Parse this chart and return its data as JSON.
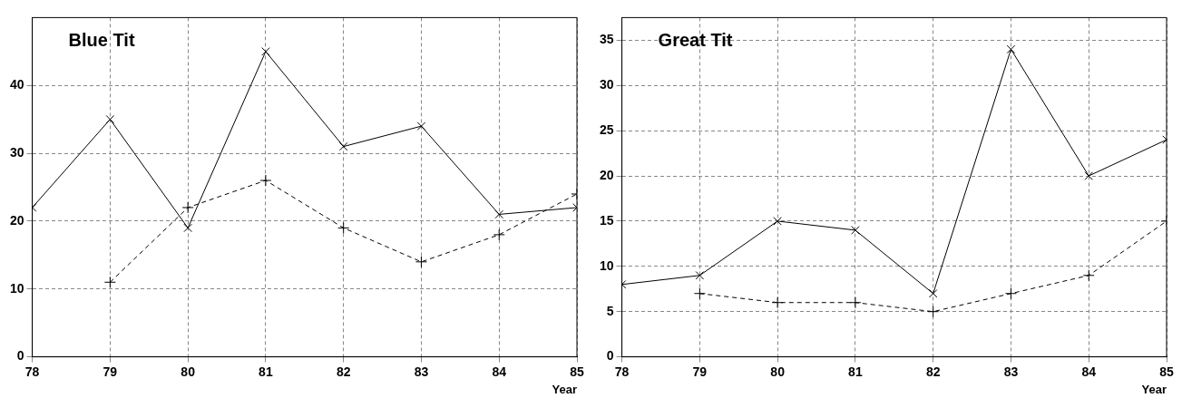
{
  "chart_data": [
    {
      "type": "line",
      "title": "Blue Tit",
      "xlabel": "Year",
      "x": [
        78,
        79,
        80,
        81,
        82,
        83,
        84,
        85
      ],
      "xlim": [
        78,
        85
      ],
      "xticks": [
        78,
        79,
        80,
        81,
        82,
        83,
        84,
        85
      ],
      "ylim": [
        0,
        50
      ],
      "yticks": [
        0,
        10,
        20,
        30,
        40
      ],
      "grid": true,
      "series": [
        {
          "color": "#000000",
          "marker": "cross",
          "line_style": "solid",
          "values": [
            22,
            35,
            19,
            45,
            31,
            34,
            21,
            22
          ]
        },
        {
          "color": "#000000",
          "marker": "cross",
          "line_style": "dashed",
          "values": [
            null,
            11,
            22,
            26,
            19,
            14,
            18,
            24
          ]
        }
      ]
    },
    {
      "type": "line",
      "title": "Great Tit",
      "xlabel": "Year",
      "x": [
        78,
        79,
        80,
        81,
        82,
        83,
        84,
        85
      ],
      "xlim": [
        78,
        85
      ],
      "xticks": [
        78,
        79,
        80,
        81,
        82,
        83,
        84,
        85
      ],
      "ylim": [
        0,
        37.5
      ],
      "yticks": [
        0,
        5,
        10,
        15,
        20,
        25,
        30,
        35
      ],
      "grid": true,
      "series": [
        {
          "color": "#000000",
          "marker": "cross",
          "line_style": "solid",
          "values": [
            8,
            9,
            15,
            14,
            7,
            34,
            20,
            24
          ]
        },
        {
          "color": "#000000",
          "marker": "cross",
          "line_style": "dashed",
          "values": [
            null,
            7,
            6,
            6,
            5,
            7,
            9,
            15
          ]
        }
      ]
    }
  ]
}
